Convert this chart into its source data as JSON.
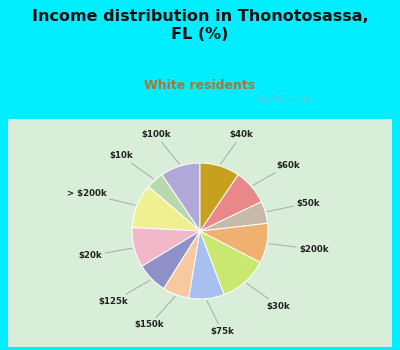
{
  "title": "Income distribution in Thonotosassa,\nFL (%)",
  "subtitle": "White residents",
  "title_color": "#111111",
  "subtitle_color": "#b87030",
  "bg_cyan": "#00eeff",
  "bg_chart": "#d8eed8",
  "labels": [
    "$100k",
    "$10k",
    "> $200k",
    "$20k",
    "$125k",
    "$150k",
    "$75k",
    "$30k",
    "$200k",
    "$50k",
    "$60k",
    "$40k"
  ],
  "sizes": [
    9,
    4,
    10,
    9,
    7,
    6,
    8,
    11,
    9,
    5,
    8,
    9
  ],
  "colors": [
    "#b0a8d8",
    "#b8d8b0",
    "#f0f090",
    "#f0b8c8",
    "#9090c8",
    "#f8c8a0",
    "#a8c0f0",
    "#c8e870",
    "#f0b070",
    "#c8baa8",
    "#e88888",
    "#c8a020"
  ],
  "wedge_edge_color": "#ffffff",
  "watermark": "City-Data.com"
}
